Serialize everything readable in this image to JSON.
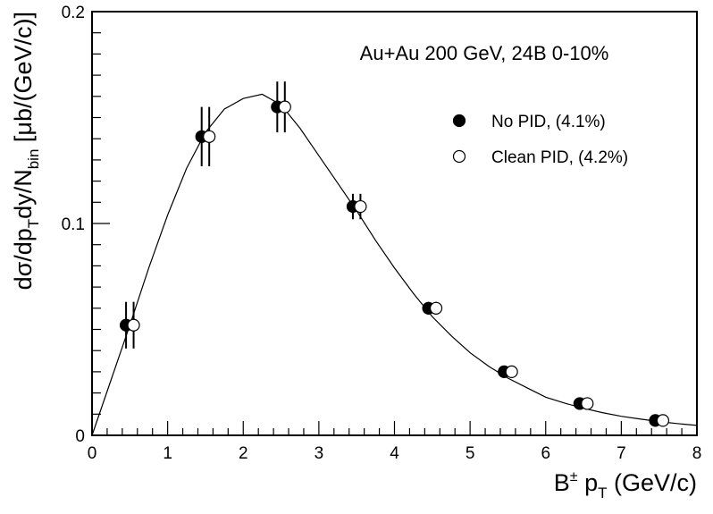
{
  "chart_data": {
    "type": "scatter",
    "annotation": "Au+Au 200 GeV, 24B 0-10%",
    "xlabel": {
      "main": "B",
      "sup": "±",
      "mid": " p",
      "sub": "T",
      "tail": " (GeV/c)"
    },
    "ylabel": {
      "p1": "dσ/dp",
      "s1": "T",
      "p2": "dy/N",
      "s2": "bin",
      "p3": " [μb/(GeV/c)]"
    },
    "xlim": [
      0,
      8
    ],
    "ylim": [
      0,
      0.2
    ],
    "x_ticks": [
      "0",
      "1",
      "2",
      "3",
      "4",
      "5",
      "6",
      "7",
      "8"
    ],
    "y_ticks": [
      "0",
      "0.1",
      "0.2"
    ],
    "grid": false,
    "legend_position": "top-right",
    "series": [
      {
        "name": "No PID,  (4.1%)",
        "marker": "filled-circle",
        "x": [
          0.45,
          1.45,
          2.45,
          3.45,
          4.45,
          5.45,
          6.45,
          7.45
        ],
        "y": [
          0.052,
          0.141,
          0.155,
          0.108,
          0.06,
          0.03,
          0.015,
          0.007
        ],
        "err": [
          0.011,
          0.014,
          0.012,
          0.006,
          0.003,
          0.001,
          0.001,
          0.0005
        ]
      },
      {
        "name": "Clean PID,  (4.2%)",
        "marker": "open-circle",
        "x": [
          0.55,
          1.55,
          2.55,
          3.55,
          4.55,
          5.55,
          6.55,
          7.55
        ],
        "y": [
          0.052,
          0.141,
          0.155,
          0.108,
          0.06,
          0.03,
          0.015,
          0.007
        ],
        "err": [
          0.011,
          0.014,
          0.012,
          0.006,
          0.003,
          0.001,
          0.001,
          0.0005
        ]
      }
    ],
    "fit_curve": {
      "x": [
        0,
        0.25,
        0.5,
        0.75,
        1.0,
        1.25,
        1.5,
        1.75,
        2.0,
        2.25,
        2.5,
        2.75,
        3.0,
        3.25,
        3.5,
        3.75,
        4.0,
        4.25,
        4.5,
        4.75,
        5.0,
        5.25,
        5.5,
        5.75,
        6.0,
        6.25,
        6.5,
        6.75,
        7.0,
        7.25,
        7.5,
        7.75,
        8.0
      ],
      "y": [
        0.0,
        0.026,
        0.052,
        0.079,
        0.104,
        0.126,
        0.143,
        0.154,
        0.159,
        0.161,
        0.156,
        0.145,
        0.132,
        0.119,
        0.106,
        0.092,
        0.079,
        0.067,
        0.056,
        0.047,
        0.039,
        0.0325,
        0.027,
        0.0225,
        0.018,
        0.0152,
        0.0128,
        0.0107,
        0.009,
        0.0077,
        0.0065,
        0.0055,
        0.0047
      ]
    }
  }
}
